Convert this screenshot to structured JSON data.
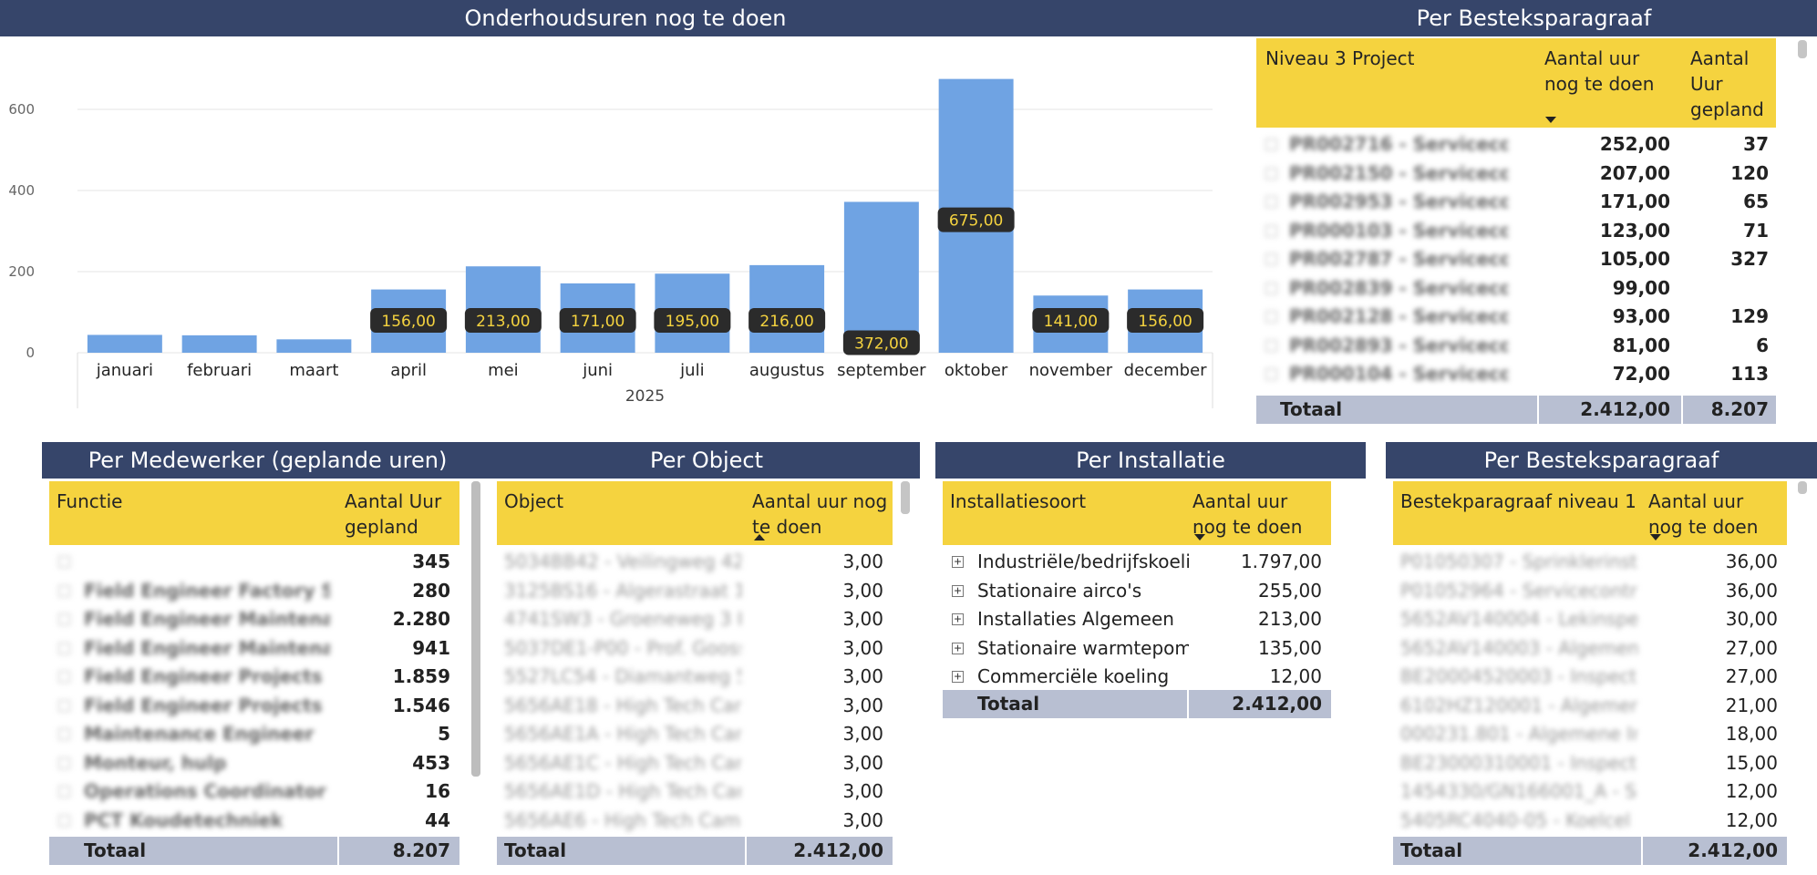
{
  "chart": {
    "title": "Onderhoudsuren nog te doen",
    "x_group_label": "2025",
    "y_ticks": [
      "0",
      "200",
      "400",
      "600"
    ]
  },
  "chart_data": {
    "type": "bar",
    "title": "Onderhoudsuren nog te doen",
    "categories": [
      "januari",
      "februari",
      "maart",
      "april",
      "mei",
      "juni",
      "juli",
      "augustus",
      "september",
      "oktober",
      "november",
      "december"
    ],
    "values": [
      44,
      43,
      33,
      156,
      213,
      171,
      195,
      216,
      372,
      675,
      141,
      156
    ],
    "data_labels": [
      "",
      "",
      "",
      "156,00",
      "213,00",
      "171,00",
      "195,00",
      "216,00",
      "372,00",
      "675,00",
      "141,00",
      "156,00"
    ],
    "xlabel": "2025",
    "ylabel": "",
    "ylim": [
      0,
      700
    ],
    "yticks": [
      0,
      200,
      400,
      600
    ],
    "bar_color": "#6fa3e3",
    "label_bg": "#2b2b2b",
    "label_color": "#f5d33f",
    "grid": true
  },
  "bestek_top": {
    "title": "Per Besteksparagraaf",
    "col1": "Niveau 3 Project",
    "col2": "Aantal uur nog te doen",
    "col3": "Aantal Uur gepland",
    "rows": [
      {
        "name": "PR002716 - Servicecont...",
        "todo": "252,00",
        "planned": "37"
      },
      {
        "name": "PR002150 - Servicecont...",
        "todo": "207,00",
        "planned": "120"
      },
      {
        "name": "PR002953 - Servicecont...",
        "todo": "171,00",
        "planned": "65"
      },
      {
        "name": "PR000103 - Servicecont...",
        "todo": "123,00",
        "planned": "71"
      },
      {
        "name": "PR002787 - Servicecont...",
        "todo": "105,00",
        "planned": "327"
      },
      {
        "name": "PR002839 - Servicecont...",
        "todo": "99,00",
        "planned": ""
      },
      {
        "name": "PR002128 - Servicecont...",
        "todo": "93,00",
        "planned": "129"
      },
      {
        "name": "PR002893 - Servicecont...",
        "todo": "81,00",
        "planned": "6"
      },
      {
        "name": "PR000104 - Servicecont...",
        "todo": "72,00",
        "planned": "113"
      }
    ],
    "total_label": "Totaal",
    "total_todo": "2.412,00",
    "total_planned": "8.207"
  },
  "medewerker": {
    "title": "Per Medewerker (geplande uren)",
    "col1": "Functie",
    "col2": "Aantal Uur gepland",
    "rows": [
      {
        "name": "",
        "value": "345"
      },
      {
        "name": "Field Engineer Factory Se...",
        "value": "280"
      },
      {
        "name": "Field Engineer Maintena...",
        "value": "2.280"
      },
      {
        "name": "Field Engineer Maintena...",
        "value": "941"
      },
      {
        "name": "Field Engineer Projects",
        "value": "1.859"
      },
      {
        "name": "Field Engineer Projects (Jr.)",
        "value": "1.546"
      },
      {
        "name": "Maintenance Engineer",
        "value": "5"
      },
      {
        "name": "Monteur, hulp",
        "value": "453"
      },
      {
        "name": "Operations Coordinator",
        "value": "16"
      },
      {
        "name": "PCT Koudetechniek",
        "value": "44"
      }
    ],
    "total_label": "Totaal",
    "total_value": "8.207"
  },
  "object": {
    "title": "Per Object",
    "col1": "Object",
    "col2": "Aantal uur nog te doen",
    "rows": [
      {
        "name": "5034BB42 - Veilingweg 42 R...",
        "value": "3,00"
      },
      {
        "name": "3125BS16 - Algerastraat 16 S...",
        "value": "3,00"
      },
      {
        "name": "4741SW3 - Groeneweg 3 HOE...",
        "value": "3,00"
      },
      {
        "name": "5037DE1-P00 - Prof. Goossen...",
        "value": "3,00"
      },
      {
        "name": "5527LC54 - Diamantweg 54 ...",
        "value": "3,00"
      },
      {
        "name": "5656AE18 - High Tech Camp...",
        "value": "3,00"
      },
      {
        "name": "5656AE1A - High Tech Camp...",
        "value": "3,00"
      },
      {
        "name": "5656AE1C - High Tech Camp...",
        "value": "3,00"
      },
      {
        "name": "5656AE1D - High Tech Camp...",
        "value": "3,00"
      },
      {
        "name": "5656AE6 - High Tech Campu...",
        "value": "3,00"
      }
    ],
    "total_label": "Totaal",
    "total_value": "2.412,00"
  },
  "installatie": {
    "title": "Per Installatie",
    "col1": "Installatiesoort",
    "col2": "Aantal uur nog te doen",
    "rows": [
      {
        "name": "Industriële/bedrijfskoeling",
        "value": "1.797,00"
      },
      {
        "name": "Stationaire airco's",
        "value": "255,00"
      },
      {
        "name": "Installaties Algemeen",
        "value": "213,00"
      },
      {
        "name": "Stationaire warmtepomp...",
        "value": "135,00"
      },
      {
        "name": "Commerciële koeling",
        "value": "12,00"
      }
    ],
    "total_label": "Totaal",
    "total_value": "2.412,00"
  },
  "bestek_bottom": {
    "title": "Per Besteksparagraaf",
    "col1": "Bestekparagraaf niveau 1",
    "col2": "Aantal uur nog te doen",
    "rows": [
      {
        "name": "P01050307 - Sprinklerinst. N...",
        "value": "36,00"
      },
      {
        "name": "P01052964 - Servicecontract ...",
        "value": "36,00"
      },
      {
        "name": "5652AV140004 - Lekinspecti...",
        "value": "30,00"
      },
      {
        "name": "5652AV140003 - Algemene I...",
        "value": "27,00"
      },
      {
        "name": "BE20004520003 - Inspectie...",
        "value": "27,00"
      },
      {
        "name": "6102HZ120001 - Algemene I...",
        "value": "21,00"
      },
      {
        "name": "000231.801 - Algemene Insp...",
        "value": "18,00"
      },
      {
        "name": "BE23000310001 - Inspectie...",
        "value": "15,00"
      },
      {
        "name": "1454330/GN166001_A - Spe...",
        "value": "12,00"
      },
      {
        "name": "5405RC4040-05 - Koelcel Bul...",
        "value": "12,00"
      }
    ],
    "total_label": "Totaal",
    "total_value": "2.412,00"
  }
}
